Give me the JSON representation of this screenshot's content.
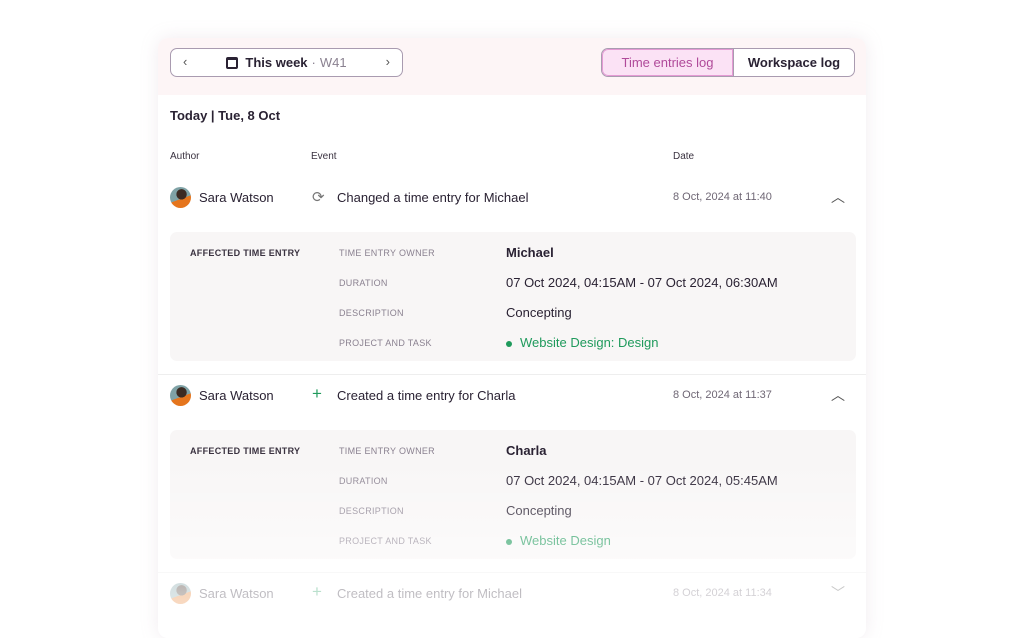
{
  "header": {
    "week_label": "This week",
    "week_number": "W41",
    "prev_icon": "chevron-left-icon",
    "next_icon": "chevron-right-icon",
    "calendar_icon": "calendar-icon",
    "tabs": [
      {
        "label": "Time entries log",
        "active": true
      },
      {
        "label": "Workspace log",
        "active": false
      }
    ]
  },
  "section_title": "Today | Tue, 8 Oct",
  "columns": {
    "author": "Author",
    "event": "Event",
    "date": "Date"
  },
  "detail_labels": {
    "section": "AFFECTED TIME ENTRY",
    "owner": "TIME ENTRY OWNER",
    "duration": "DURATION",
    "description": "DESCRIPTION",
    "project": "PROJECT AND TASK"
  },
  "colors": {
    "accent": "#b04a9a",
    "accent_bg": "#fbe2f5",
    "project": "#1f9a5c",
    "create_icon": "#1f9a5c"
  },
  "entries": [
    {
      "author": "Sara Watson",
      "icon": "refresh-icon",
      "event": "Changed a time entry for Michael",
      "date": "8 Oct, 2024 at 11:40",
      "expanded": true,
      "owner": "Michael",
      "duration": "07 Oct 2024, 04:15AM - 07 Oct 2024, 06:30AM",
      "description": "Concepting",
      "project": "Website Design: Design"
    },
    {
      "author": "Sara Watson",
      "icon": "plus-icon",
      "event": "Created a time entry for Charla",
      "date": "8 Oct, 2024 at 11:37",
      "expanded": true,
      "owner": "Charla",
      "duration": "07 Oct 2024, 04:15AM - 07 Oct 2024, 05:45AM",
      "description": "Concepting",
      "project": "Website Design"
    },
    {
      "author": "Sara Watson",
      "icon": "plus-icon",
      "event": "Created a time entry for Michael",
      "date": "8 Oct, 2024 at 11:34",
      "expanded": false
    }
  ]
}
